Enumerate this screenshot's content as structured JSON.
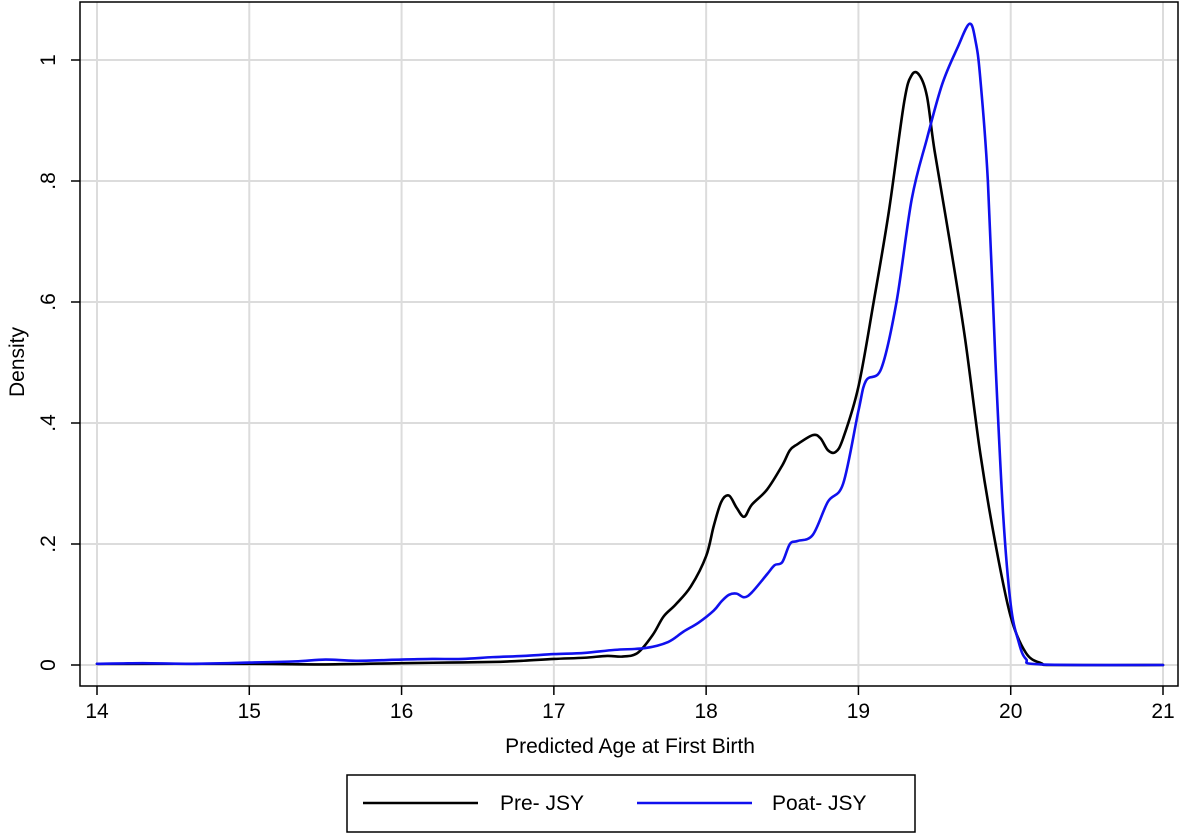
{
  "chart_data": {
    "type": "line",
    "title": "",
    "xlabel": "Predicted Age at First Birth",
    "ylabel": "Density",
    "xlim": [
      14,
      21
    ],
    "ylim": [
      0,
      1.08
    ],
    "x_ticks": [
      14,
      15,
      16,
      17,
      18,
      19,
      20,
      21
    ],
    "x_tick_labels": [
      "14",
      "15",
      "16",
      "17",
      "18",
      "19",
      "20",
      "21"
    ],
    "y_ticks": [
      0,
      0.2,
      0.4,
      0.6,
      0.8,
      1
    ],
    "y_tick_labels": [
      "0",
      ".2",
      ".4",
      ".6",
      ".8",
      "1"
    ],
    "grid": true,
    "legend_position": "bottom",
    "series": [
      {
        "name": "Pre- JSY",
        "color": "#000000",
        "points": [
          [
            14.0,
            0.002
          ],
          [
            15.0,
            0.002
          ],
          [
            15.5,
            0.001
          ],
          [
            16.0,
            0.003
          ],
          [
            16.3,
            0.004
          ],
          [
            16.6,
            0.005
          ],
          [
            16.8,
            0.007
          ],
          [
            17.0,
            0.01
          ],
          [
            17.2,
            0.012
          ],
          [
            17.35,
            0.015
          ],
          [
            17.45,
            0.014
          ],
          [
            17.55,
            0.02
          ],
          [
            17.65,
            0.05
          ],
          [
            17.72,
            0.08
          ],
          [
            17.8,
            0.1
          ],
          [
            17.9,
            0.13
          ],
          [
            18.0,
            0.18
          ],
          [
            18.05,
            0.23
          ],
          [
            18.1,
            0.27
          ],
          [
            18.15,
            0.28
          ],
          [
            18.2,
            0.26
          ],
          [
            18.25,
            0.245
          ],
          [
            18.3,
            0.265
          ],
          [
            18.4,
            0.29
          ],
          [
            18.5,
            0.33
          ],
          [
            18.55,
            0.355
          ],
          [
            18.6,
            0.365
          ],
          [
            18.7,
            0.38
          ],
          [
            18.75,
            0.375
          ],
          [
            18.8,
            0.355
          ],
          [
            18.85,
            0.352
          ],
          [
            18.9,
            0.375
          ],
          [
            19.0,
            0.46
          ],
          [
            19.1,
            0.6
          ],
          [
            19.2,
            0.75
          ],
          [
            19.3,
            0.93
          ],
          [
            19.35,
            0.975
          ],
          [
            19.4,
            0.975
          ],
          [
            19.45,
            0.94
          ],
          [
            19.5,
            0.85
          ],
          [
            19.6,
            0.7
          ],
          [
            19.7,
            0.54
          ],
          [
            19.8,
            0.35
          ],
          [
            19.9,
            0.2
          ],
          [
            20.0,
            0.08
          ],
          [
            20.1,
            0.02
          ],
          [
            20.2,
            0.003
          ],
          [
            20.3,
            0.0
          ],
          [
            21.0,
            0.0
          ]
        ]
      },
      {
        "name": "Poat- JSY",
        "color": "#1010ee",
        "points": [
          [
            14.0,
            0.002
          ],
          [
            14.3,
            0.003
          ],
          [
            14.6,
            0.002
          ],
          [
            15.0,
            0.004
          ],
          [
            15.3,
            0.006
          ],
          [
            15.5,
            0.009
          ],
          [
            15.7,
            0.007
          ],
          [
            16.0,
            0.009
          ],
          [
            16.2,
            0.01
          ],
          [
            16.4,
            0.01
          ],
          [
            16.6,
            0.013
          ],
          [
            16.8,
            0.015
          ],
          [
            17.0,
            0.018
          ],
          [
            17.2,
            0.02
          ],
          [
            17.4,
            0.025
          ],
          [
            17.6,
            0.028
          ],
          [
            17.75,
            0.038
          ],
          [
            17.85,
            0.055
          ],
          [
            17.95,
            0.07
          ],
          [
            18.05,
            0.09
          ],
          [
            18.1,
            0.105
          ],
          [
            18.15,
            0.116
          ],
          [
            18.2,
            0.118
          ],
          [
            18.25,
            0.112
          ],
          [
            18.3,
            0.12
          ],
          [
            18.4,
            0.15
          ],
          [
            18.45,
            0.165
          ],
          [
            18.5,
            0.17
          ],
          [
            18.55,
            0.2
          ],
          [
            18.6,
            0.205
          ],
          [
            18.7,
            0.215
          ],
          [
            18.8,
            0.27
          ],
          [
            18.9,
            0.3
          ],
          [
            19.0,
            0.42
          ],
          [
            19.05,
            0.47
          ],
          [
            19.15,
            0.49
          ],
          [
            19.25,
            0.6
          ],
          [
            19.35,
            0.77
          ],
          [
            19.45,
            0.87
          ],
          [
            19.55,
            0.96
          ],
          [
            19.65,
            1.02
          ],
          [
            19.73,
            1.06
          ],
          [
            19.77,
            1.03
          ],
          [
            19.8,
            0.97
          ],
          [
            19.85,
            0.8
          ],
          [
            19.9,
            0.5
          ],
          [
            19.95,
            0.25
          ],
          [
            20.0,
            0.1
          ],
          [
            20.05,
            0.04
          ],
          [
            20.1,
            0.01
          ],
          [
            20.2,
            0.001
          ],
          [
            21.0,
            0.0
          ]
        ]
      }
    ]
  }
}
